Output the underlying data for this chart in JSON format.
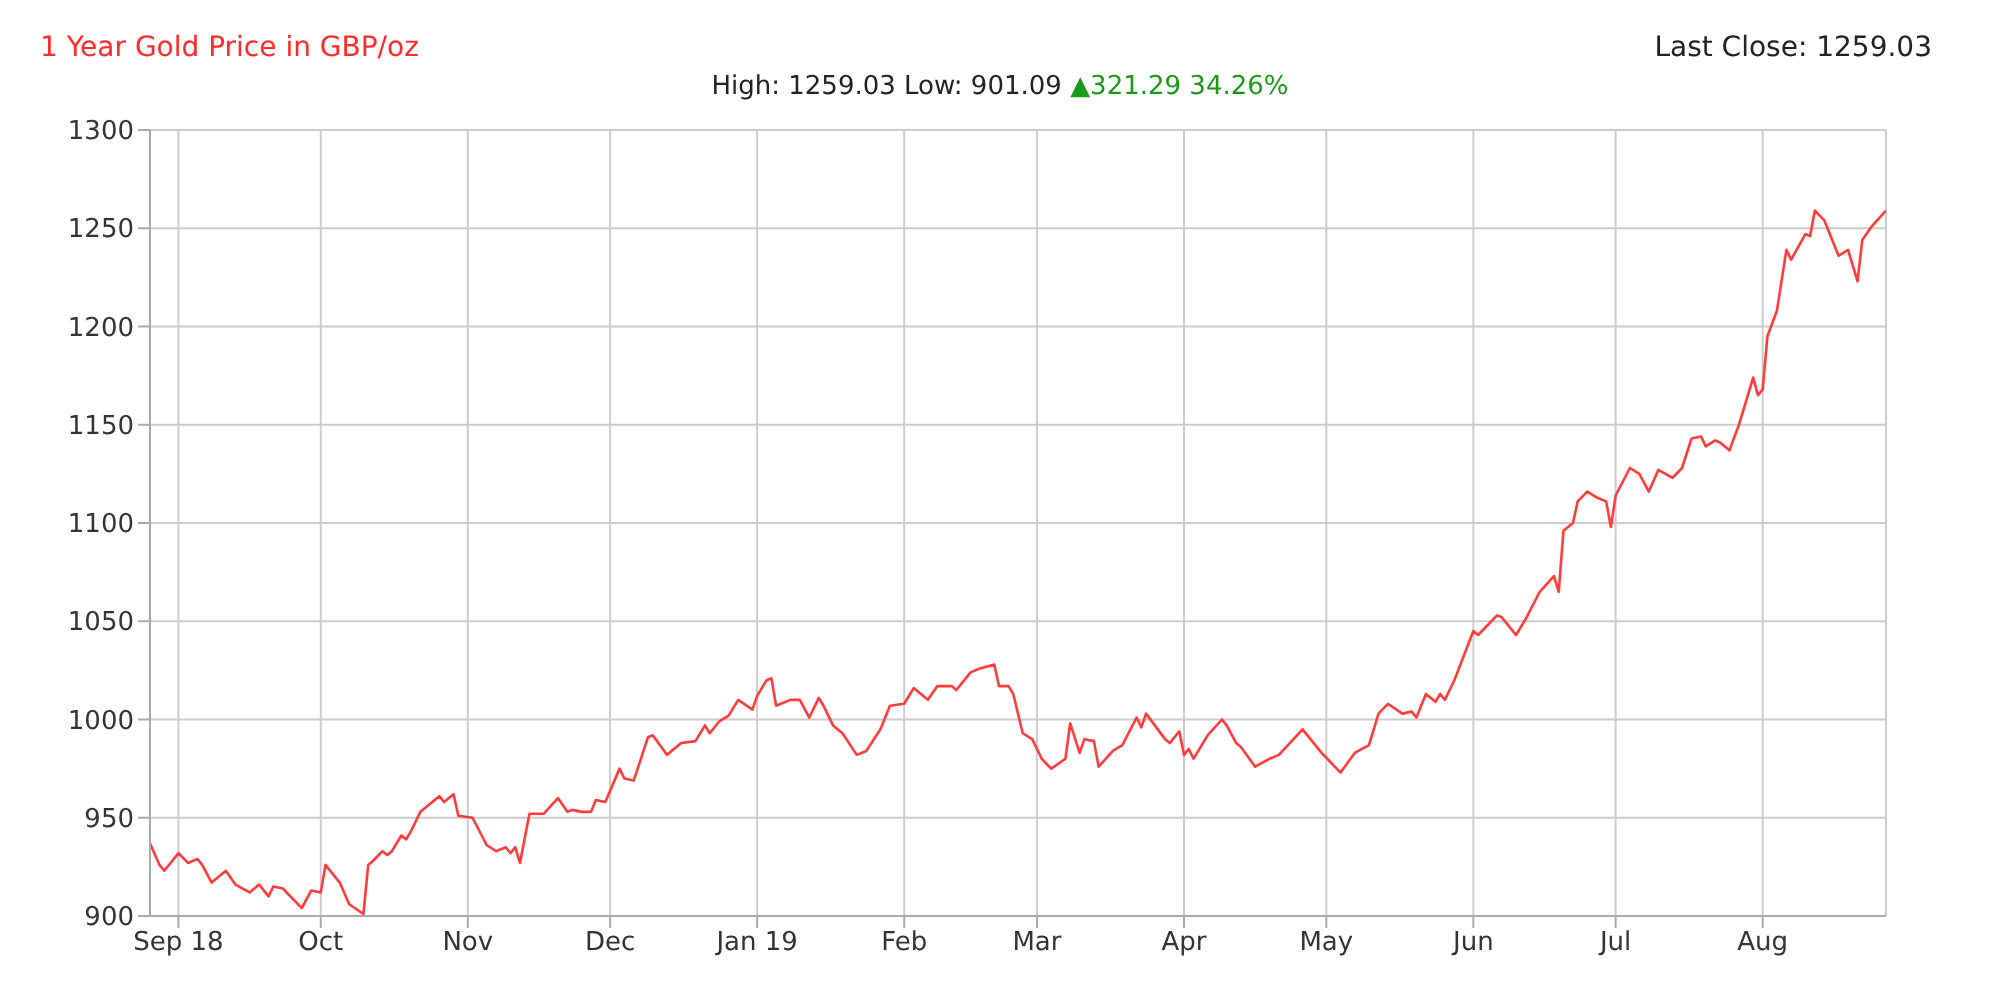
{
  "chart_data": {
    "type": "line",
    "title": "1 Year Gold Price in GBP/oz",
    "subtitle": "High: 1259.03 Low: 901.09",
    "annotations": [
      "Last Close: 1259.03",
      "▲321.29 34.26%"
    ],
    "x": [
      "2018-08-26",
      "2018-08-28",
      "2018-08-29",
      "2018-09-01",
      "2018-09-03",
      "2018-09-05",
      "2018-09-06",
      "2018-09-08",
      "2018-09-11",
      "2018-09-13",
      "2018-09-16",
      "2018-09-18",
      "2018-09-20",
      "2018-09-21",
      "2018-09-23",
      "2018-09-27",
      "2018-09-29",
      "2018-10-01",
      "2018-10-02",
      "2018-10-05",
      "2018-10-07",
      "2018-10-10",
      "2018-10-11",
      "2018-10-12",
      "2018-10-14",
      "2018-10-15",
      "2018-10-16",
      "2018-10-18",
      "2018-10-19",
      "2018-10-20",
      "2018-10-22",
      "2018-10-26",
      "2018-10-27",
      "2018-10-29",
      "2018-10-30",
      "2018-11-02",
      "2018-11-05",
      "2018-11-07",
      "2018-11-09",
      "2018-11-10",
      "2018-11-11",
      "2018-11-12",
      "2018-11-14",
      "2018-11-17",
      "2018-11-20",
      "2018-11-22",
      "2018-11-23",
      "2018-11-25",
      "2018-11-27",
      "2018-11-28",
      "2018-11-30",
      "2018-12-03",
      "2018-12-04",
      "2018-12-06",
      "2018-12-09",
      "2018-12-10",
      "2018-12-13",
      "2018-12-16",
      "2018-12-19",
      "2018-12-21",
      "2018-12-22",
      "2018-12-24",
      "2018-12-26",
      "2018-12-28",
      "2018-12-31",
      "2019-01-01",
      "2019-01-03",
      "2019-01-04",
      "2019-01-05",
      "2019-01-08",
      "2019-01-10",
      "2019-01-12",
      "2019-01-14",
      "2019-01-15",
      "2019-01-17",
      "2019-01-19",
      "2019-01-22",
      "2019-01-24",
      "2019-01-27",
      "2019-01-29",
      "2019-02-01",
      "2019-02-03",
      "2019-02-06",
      "2019-02-08",
      "2019-02-11",
      "2019-02-12",
      "2019-02-15",
      "2019-02-17",
      "2019-02-20",
      "2019-02-21",
      "2019-02-23",
      "2019-02-24",
      "2019-02-26",
      "2019-02-28",
      "2019-03-02",
      "2019-03-04",
      "2019-03-07",
      "2019-03-08",
      "2019-03-10",
      "2019-03-11",
      "2019-03-13",
      "2019-03-14",
      "2019-03-17",
      "2019-03-19",
      "2019-03-22",
      "2019-03-23",
      "2019-03-24",
      "2019-03-28",
      "2019-03-29",
      "2019-03-31",
      "2019-04-01",
      "2019-04-02",
      "2019-04-03",
      "2019-04-06",
      "2019-04-09",
      "2019-04-10",
      "2019-04-12",
      "2019-04-13",
      "2019-04-16",
      "2019-04-19",
      "2019-04-21",
      "2019-04-26",
      "2019-04-30",
      "2019-05-04",
      "2019-05-07",
      "2019-05-10",
      "2019-05-12",
      "2019-05-14",
      "2019-05-17",
      "2019-05-19",
      "2019-05-20",
      "2019-05-22",
      "2019-05-24",
      "2019-05-25",
      "2019-05-26",
      "2019-05-28",
      "2019-06-01",
      "2019-06-02",
      "2019-06-06",
      "2019-06-07",
      "2019-06-10",
      "2019-06-12",
      "2019-06-15",
      "2019-06-18",
      "2019-06-19",
      "2019-06-20",
      "2019-06-22",
      "2019-06-23",
      "2019-06-25",
      "2019-06-27",
      "2019-06-29",
      "2019-06-30",
      "2019-07-01",
      "2019-07-04",
      "2019-07-06",
      "2019-07-08",
      "2019-07-10",
      "2019-07-13",
      "2019-07-15",
      "2019-07-17",
      "2019-07-19",
      "2019-07-20",
      "2019-07-22",
      "2019-07-23",
      "2019-07-25",
      "2019-07-27",
      "2019-07-30",
      "2019-07-31",
      "2019-08-01",
      "2019-08-02",
      "2019-08-04",
      "2019-08-06",
      "2019-08-07",
      "2019-08-10",
      "2019-08-11",
      "2019-08-12",
      "2019-08-14",
      "2019-08-17",
      "2019-08-19",
      "2019-08-21",
      "2019-08-22",
      "2019-08-24",
      "2019-08-27"
    ],
    "series": [
      {
        "color": "#ff3b3b",
        "values": [
          937,
          926,
          923,
          932,
          927,
          929,
          926,
          917,
          923,
          916,
          912,
          916,
          910,
          915,
          914,
          904,
          913,
          912,
          926,
          917,
          906,
          901,
          926,
          928,
          933,
          931,
          933,
          941,
          939,
          943,
          953,
          961,
          958,
          962,
          951,
          950,
          936,
          933,
          935,
          932,
          935,
          927,
          952,
          952,
          960,
          953,
          954,
          953,
          953,
          959,
          958,
          975,
          970,
          969,
          991,
          992,
          982,
          988,
          989,
          997,
          993,
          999,
          1002,
          1010,
          1005,
          1012,
          1020,
          1021,
          1007,
          1010,
          1010,
          1001,
          1011,
          1007,
          997,
          993,
          982,
          984,
          995,
          1007,
          1008,
          1016,
          1010,
          1017,
          1017,
          1015,
          1024,
          1026,
          1028,
          1017,
          1017,
          1013,
          993,
          990,
          980,
          975,
          980,
          998,
          983,
          990,
          989,
          976,
          984,
          987,
          1001,
          996,
          1003,
          990,
          988,
          994,
          982,
          985,
          980,
          992,
          1000,
          997,
          988,
          986,
          976,
          980,
          982,
          995,
          983,
          973,
          983,
          987,
          1003,
          1008,
          1003,
          1004,
          1001,
          1013,
          1009,
          1013,
          1010,
          1020,
          1045,
          1043,
          1053,
          1052,
          1043,
          1051,
          1065,
          1073,
          1065,
          1096,
          1100,
          1111,
          1116,
          1113,
          1111,
          1098,
          1114,
          1128,
          1125,
          1116,
          1127,
          1123,
          1128,
          1143,
          1144,
          1139,
          1142,
          1141,
          1137,
          1150,
          1174,
          1165,
          1168,
          1195,
          1208,
          1239,
          1234,
          1247,
          1246,
          1259,
          1254,
          1236,
          1239,
          1223,
          1244,
          1251,
          1259
        ]
      }
    ],
    "xlim": [
      "2018-08-26",
      "2019-08-27"
    ],
    "xticks": [
      {
        "value": "2018-09-01",
        "label": "Sep 18"
      },
      {
        "value": "2018-10-01",
        "label": "Oct"
      },
      {
        "value": "2018-11-01",
        "label": "Nov"
      },
      {
        "value": "2018-12-01",
        "label": "Dec"
      },
      {
        "value": "2019-01-01",
        "label": "Jan 19"
      },
      {
        "value": "2019-02-01",
        "label": "Feb"
      },
      {
        "value": "2019-03-01",
        "label": "Mar"
      },
      {
        "value": "2019-04-01",
        "label": "Apr"
      },
      {
        "value": "2019-05-01",
        "label": "May"
      },
      {
        "value": "2019-06-01",
        "label": "Jun"
      },
      {
        "value": "2019-07-01",
        "label": "Jul"
      },
      {
        "value": "2019-08-01",
        "label": "Aug"
      }
    ],
    "ylim": [
      900,
      1300
    ],
    "yticks": [
      900,
      950,
      1000,
      1050,
      1100,
      1150,
      1200,
      1250,
      1300
    ],
    "grid": true,
    "legend": false,
    "marker": "none",
    "line_style": "solid"
  }
}
